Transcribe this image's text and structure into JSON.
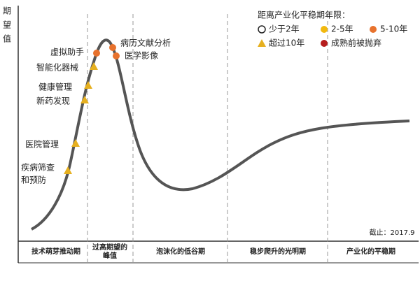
{
  "y_axis_label": [
    "期",
    "望",
    "值"
  ],
  "legend": {
    "title": "距离产业化平稳期年限：",
    "items": [
      {
        "label": "少于2年"
      },
      {
        "label": "2-5年"
      },
      {
        "label": "5-10年"
      },
      {
        "label": "超过10年"
      },
      {
        "label": "成熟前被抛弃"
      }
    ]
  },
  "technologies": [
    {
      "lines": [
        "疾病筛查",
        "和预防"
      ]
    },
    {
      "lines": [
        "医院管理"
      ]
    },
    {
      "lines": [
        "新药发现"
      ]
    },
    {
      "lines": [
        "健康管理"
      ]
    },
    {
      "lines": [
        "智能化器械"
      ]
    },
    {
      "lines": [
        "虚拟助手"
      ]
    },
    {
      "lines": [
        "病历文献分析"
      ]
    },
    {
      "lines": [
        "医学影像"
      ]
    }
  ],
  "phases": [
    {
      "lines": [
        "技术萌芽推动期"
      ]
    },
    {
      "lines": [
        "过高期望的",
        "峰值"
      ]
    },
    {
      "lines": [
        "泡沫化的低谷期"
      ]
    },
    {
      "lines": [
        "稳步爬升的光明期"
      ]
    },
    {
      "lines": [
        "产业化的平稳期"
      ]
    }
  ],
  "note": "截止：2017.9"
}
